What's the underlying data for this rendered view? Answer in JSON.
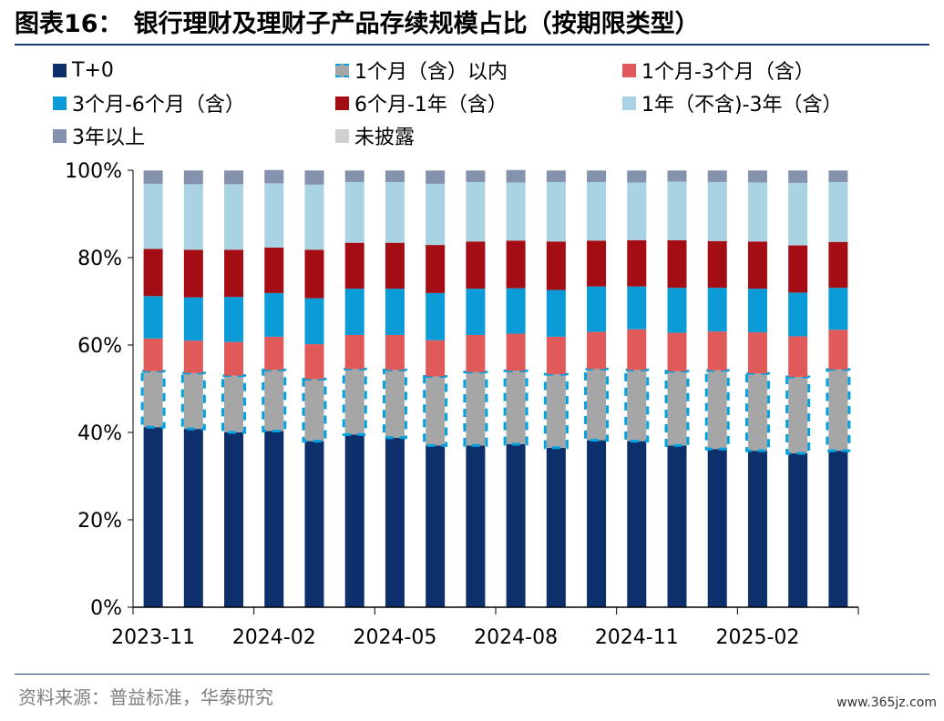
{
  "figure": {
    "label": "图表16：",
    "title": "银行理财及理财子产品存续规模占比（按期限类型）"
  },
  "source": "资料来源：普益标准，华泰研究",
  "watermark": "www.365jz.com",
  "colors": {
    "title_rule": "#1a3a73",
    "axis": "#000000"
  },
  "chart_data": {
    "type": "bar",
    "stacked": true,
    "title": "",
    "xlabel": "",
    "ylabel": "",
    "ylim": [
      0,
      100
    ],
    "yticks": [
      "0%",
      "20%",
      "40%",
      "60%",
      "80%",
      "100%"
    ],
    "x_tick_labels": [
      "2023-11",
      "2024-02",
      "2024-05",
      "2024-08",
      "2024-11",
      "2025-02"
    ],
    "legend_position": "top",
    "categories": [
      "2023-11",
      "2023-12",
      "2024-01",
      "2024-02",
      "2024-03",
      "2024-04",
      "2024-05",
      "2024-06",
      "2024-07",
      "2024-08",
      "2024-09",
      "2024-10",
      "2024-11",
      "2024-12",
      "2025-01",
      "2025-02",
      "2025-03",
      "2025-04"
    ],
    "series": [
      {
        "name": "T+0",
        "color": "#0d2f6b",
        "style": "solid",
        "values": [
          41.2,
          40.8,
          40.0,
          40.3,
          38.0,
          39.5,
          38.8,
          37.0,
          37.0,
          37.3,
          36.5,
          38.2,
          38.0,
          37.0,
          36.2,
          35.8,
          35.2,
          35.8
        ]
      },
      {
        "name": "1个月（含）以内",
        "color": "#a6a6a6",
        "style": "dashed",
        "dash_color": "#00a3e0",
        "values": [
          12.8,
          12.8,
          13.0,
          14.0,
          14.2,
          15.0,
          15.5,
          15.8,
          16.8,
          16.8,
          16.8,
          16.3,
          16.3,
          17.0,
          18.0,
          17.7,
          17.5,
          18.6
        ]
      },
      {
        "name": "1个月-3个月（含）",
        "color": "#e05a5a",
        "style": "solid",
        "values": [
          7.5,
          7.4,
          7.7,
          7.6,
          8.0,
          7.8,
          8.0,
          8.3,
          8.5,
          8.5,
          8.6,
          8.5,
          9.3,
          8.8,
          8.9,
          9.4,
          9.3,
          9.1
        ]
      },
      {
        "name": "3个月-6个月（含）",
        "color": "#0b9bd6",
        "style": "solid",
        "values": [
          9.7,
          9.9,
          10.3,
          10.0,
          10.5,
          10.6,
          10.6,
          10.8,
          10.6,
          10.4,
          10.7,
          10.4,
          9.8,
          10.3,
          10.0,
          10.0,
          10.0,
          9.6
        ]
      },
      {
        "name": "6个月-1年（含）",
        "color": "#a50d15",
        "style": "solid",
        "values": [
          10.8,
          10.9,
          10.8,
          10.4,
          11.1,
          10.5,
          10.5,
          11.0,
          10.8,
          10.9,
          11.1,
          10.5,
          10.6,
          10.9,
          10.7,
          10.8,
          10.8,
          10.5
        ]
      },
      {
        "name": "1年（不含)-3年（含）",
        "color": "#a9d3e3",
        "style": "solid",
        "values": [
          14.9,
          15.0,
          15.0,
          14.7,
          14.9,
          13.9,
          13.9,
          14.0,
          13.6,
          13.3,
          13.6,
          13.4,
          13.2,
          13.4,
          13.5,
          13.5,
          14.3,
          13.7
        ]
      },
      {
        "name": "3年以上",
        "color": "#8592ad",
        "style": "solid",
        "values": [
          3.0,
          3.1,
          3.1,
          3.0,
          3.2,
          2.6,
          2.6,
          3.0,
          2.6,
          2.8,
          2.6,
          2.6,
          2.7,
          2.5,
          2.6,
          2.7,
          2.8,
          2.6
        ]
      },
      {
        "name": "未披露",
        "color": "#d0d0d0",
        "style": "solid",
        "values": [
          0.1,
          0.1,
          0.1,
          0.1,
          0.1,
          0.1,
          0.1,
          0.1,
          0.1,
          0.1,
          0.1,
          0.1,
          0.1,
          0.1,
          0.1,
          0.1,
          0.1,
          0.1
        ]
      }
    ]
  }
}
